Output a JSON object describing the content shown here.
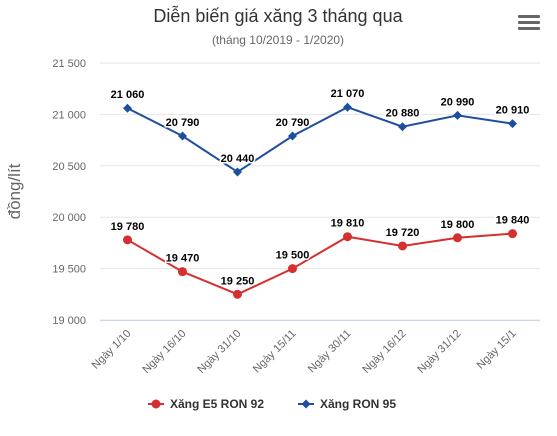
{
  "chart_data": {
    "type": "line",
    "title": "Diễn biến giá xăng 3 tháng qua",
    "subtitle": "(tháng 10/2019 - 1/2020)",
    "xlabel": "",
    "ylabel": "đồng/lít",
    "categories": [
      "Ngày 1/10",
      "Ngày 16/10",
      "Ngày 31/10",
      "Ngày 15/11",
      "Ngày 30/11",
      "Ngày 16/12",
      "Ngày 31/12",
      "Ngày 15/1"
    ],
    "ylim": [
      19000,
      21500
    ],
    "yticks": [
      19000,
      19500,
      20000,
      20500,
      21000,
      21500
    ],
    "ytick_labels": [
      "19 000",
      "19 500",
      "20 000",
      "20 500",
      "21 000",
      "21 500"
    ],
    "grid": true,
    "legend": "bottom-center",
    "series": [
      {
        "name": "Xăng E5 RON 92",
        "color": "#d62f2f",
        "marker": "circle",
        "values": [
          19780,
          19470,
          19250,
          19500,
          19810,
          19720,
          19800,
          19840
        ],
        "labels": [
          "19 780",
          "19 470",
          "19 250",
          "19 500",
          "19 810",
          "19 720",
          "19 800",
          "19 840"
        ]
      },
      {
        "name": "Xăng RON 95",
        "color": "#1f4e9e",
        "marker": "diamond",
        "values": [
          21060,
          20790,
          20440,
          20790,
          21070,
          20880,
          20990,
          20910
        ],
        "labels": [
          "21 060",
          "20 790",
          "20 440",
          "20 790",
          "21 070",
          "20 880",
          "20 990",
          "20 910"
        ]
      }
    ]
  },
  "toolbar": {
    "menu_icon": "hamburger-menu-icon"
  }
}
